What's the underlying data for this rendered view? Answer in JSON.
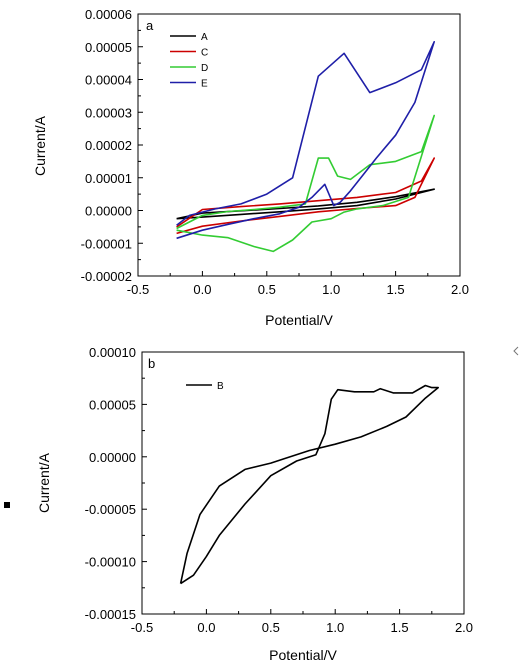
{
  "chart_data": [
    {
      "type": "line",
      "panel_label": "a",
      "xlabel": "Potential/V",
      "ylabel": "Current/A",
      "xlim": [
        -0.5,
        2.0
      ],
      "ylim": [
        -2e-05,
        6e-05
      ],
      "xticks": [
        -0.5,
        0.0,
        0.5,
        1.0,
        1.5,
        2.0
      ],
      "xtick_labels": [
        "-0.5",
        "0.0",
        "0.5",
        "1.0",
        "1.5",
        "2.0"
      ],
      "yticks": [
        -2e-05,
        -1e-05,
        0,
        1e-05,
        2e-05,
        3e-05,
        4e-05,
        5e-05,
        6e-05
      ],
      "ytick_labels": [
        "-0.00002",
        "-0.00001",
        "0.00000",
        "0.00001",
        "0.00002",
        "0.00003",
        "0.00004",
        "0.00005",
        "0.00006"
      ],
      "grid": false,
      "legend_position": "top-left",
      "series": [
        {
          "name": "A",
          "color": "#000000",
          "x": [
            -0.2,
            0.0,
            0.3,
            0.6,
            0.9,
            1.2,
            1.5,
            1.8,
            1.8,
            1.5,
            1.2,
            0.9,
            0.6,
            0.3,
            0.0,
            -0.2
          ],
          "y": [
            -2.5e-06,
            -2e-06,
            -1.2e-06,
            -4e-07,
            5e-07,
            1.5e-06,
            3.5e-06,
            6.5e-06,
            6.5e-06,
            4.2e-06,
            2.5e-06,
            1.4e-06,
            6e-07,
            -1e-07,
            -8e-07,
            -2.5e-06
          ]
        },
        {
          "name": "C",
          "color": "#cc0000",
          "x": [
            -0.2,
            0.0,
            0.3,
            0.6,
            0.9,
            1.2,
            1.5,
            1.65,
            1.8,
            1.8,
            1.7,
            1.5,
            1.2,
            0.9,
            0.6,
            0.3,
            0.0,
            -0.2
          ],
          "y": [
            -7e-06,
            -4.8e-06,
            -3.2e-06,
            -1.8e-06,
            -4e-07,
            6e-07,
            1.5e-06,
            4e-06,
            1.6e-05,
            1.6e-05,
            9e-06,
            5.5e-06,
            4e-06,
            3e-06,
            2e-06,
            1.2e-06,
            3e-07,
            -5e-06
          ]
        },
        {
          "name": "D",
          "color": "#33cc33",
          "x": [
            -0.2,
            0.0,
            0.2,
            0.4,
            0.55,
            0.7,
            0.85,
            1.0,
            1.1,
            1.2,
            1.4,
            1.6,
            1.8,
            1.8,
            1.7,
            1.5,
            1.3,
            1.15,
            1.05,
            0.98,
            0.9,
            0.8,
            0.6,
            0.4,
            0.2,
            0.0,
            -0.2
          ],
          "y": [
            -6e-06,
            -7.5e-06,
            -8.3e-06,
            -1.1e-05,
            -1.25e-05,
            -9e-06,
            -3.5e-06,
            -2.5e-06,
            -5e-07,
            5e-07,
            1.5e-06,
            4e-06,
            2.9e-05,
            2.9e-05,
            1.8e-05,
            1.5e-05,
            1.4e-05,
            9.5e-06,
            1.05e-05,
            1.6e-05,
            1.6e-05,
            2e-06,
            1e-06,
            3e-07,
            -3e-07,
            -1.5e-06,
            -5.5e-06
          ]
        },
        {
          "name": "E",
          "color": "#1f1fa8",
          "x": [
            -0.2,
            0.0,
            0.2,
            0.4,
            0.6,
            0.75,
            0.85,
            0.95,
            1.02,
            1.07,
            1.15,
            1.25,
            1.35,
            1.5,
            1.65,
            1.8,
            1.8,
            1.7,
            1.5,
            1.3,
            1.1,
            0.9,
            0.7,
            0.5,
            0.3,
            0.1,
            -0.1,
            -0.2
          ],
          "y": [
            -8.5e-06,
            -6e-06,
            -4.2e-06,
            -2.5e-06,
            -1e-06,
            1e-06,
            4e-06,
            8e-06,
            1.5e-06,
            2.5e-06,
            6e-06,
            1.1e-05,
            1.6e-05,
            2.3e-05,
            3.3e-05,
            5.15e-05,
            5.15e-05,
            4.3e-05,
            3.9e-05,
            3.6e-05,
            4.8e-05,
            4.1e-05,
            1e-05,
            5e-06,
            2e-06,
            5e-07,
            -1.5e-06,
            -4.5e-06
          ]
        }
      ]
    },
    {
      "type": "line",
      "panel_label": "b",
      "xlabel": "Potential/V",
      "ylabel": "Current/A",
      "xlim": [
        -0.5,
        2.0
      ],
      "ylim": [
        -0.00015,
        0.0001
      ],
      "xticks": [
        -0.5,
        0.0,
        0.5,
        1.0,
        1.5,
        2.0
      ],
      "xtick_labels": [
        "-0.5",
        "0.0",
        "0.5",
        "1.0",
        "1.5",
        "2.0"
      ],
      "yticks": [
        -0.00015,
        -0.0001,
        -5e-05,
        0,
        5e-05,
        0.0001
      ],
      "ytick_labels": [
        "-0.00015",
        "-0.00010",
        "-0.00005",
        "0.00000",
        "0.00005",
        "0.00010"
      ],
      "grid": false,
      "legend_position": "top-left",
      "series": [
        {
          "name": "B",
          "color": "#000000",
          "x": [
            -0.2,
            -0.1,
            0.0,
            0.1,
            0.3,
            0.5,
            0.7,
            0.85,
            0.92,
            0.97,
            1.02,
            1.15,
            1.3,
            1.35,
            1.45,
            1.6,
            1.7,
            1.75,
            1.8,
            1.8,
            1.7,
            1.55,
            1.4,
            1.2,
            1.0,
            0.8,
            0.6,
            0.5,
            0.3,
            0.1,
            -0.05,
            -0.15,
            -0.2
          ],
          "y": [
            -0.000121,
            -0.000113,
            -9.5e-05,
            -7.5e-05,
            -4.5e-05,
            -1.8e-05,
            -4e-06,
            2e-06,
            2.2e-05,
            5.5e-05,
            6.4e-05,
            6.2e-05,
            6.2e-05,
            6.5e-05,
            6.1e-05,
            6.1e-05,
            6.8e-05,
            6.6e-05,
            6.6e-05,
            6.6e-05,
            5.6e-05,
            3.8e-05,
            2.9e-05,
            1.9e-05,
            1.2e-05,
            6e-06,
            -2e-06,
            -6e-06,
            -1.2e-05,
            -2.8e-05,
            -5.5e-05,
            -9.2e-05,
            -0.000121
          ]
        }
      ]
    }
  ]
}
